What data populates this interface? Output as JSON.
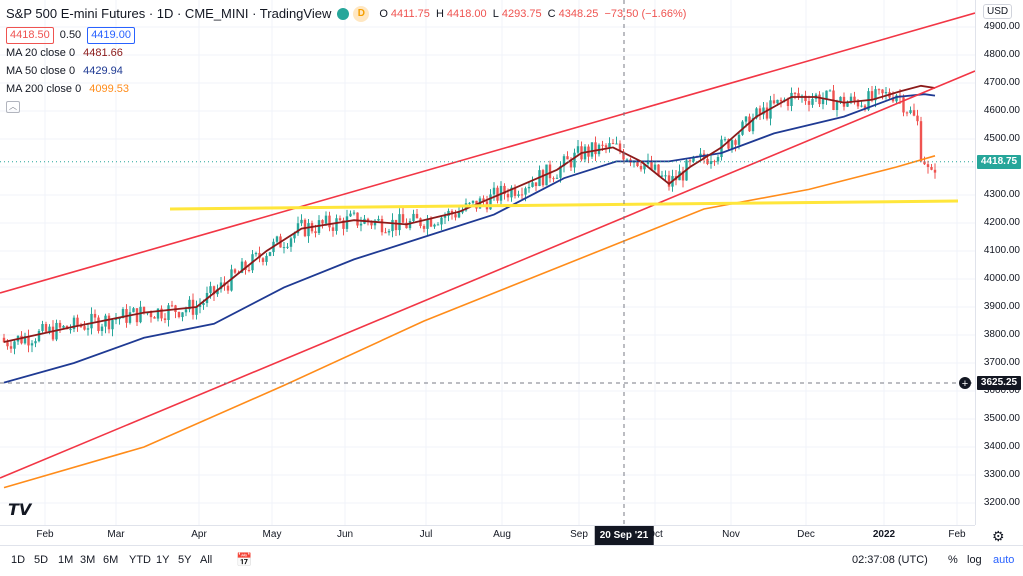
{
  "header": {
    "title": "S&P 500 E-mini Futures · 1D · CME_MINI · TradingView",
    "interval_badge": "D",
    "ohlc": {
      "o_label": "O",
      "o": "4411.75",
      "h_label": "H",
      "h": "4418.00",
      "l_label": "L",
      "l": "4293.75",
      "c_label": "C",
      "c": "4348.25",
      "change": "−73.50 (−1.66%)"
    },
    "bid": "4418.50",
    "spread": "0.50",
    "ask": "4419.00"
  },
  "indicators": [
    {
      "label": "MA 20 close 0",
      "value": "4481.66",
      "color": "#8b1a1a"
    },
    {
      "label": "MA 50 close 0",
      "value": "4429.94",
      "color": "#1f3a93"
    },
    {
      "label": "MA 200 close 0",
      "value": "4099.53",
      "color": "#ff8c1a"
    }
  ],
  "price_axis": {
    "currency": "USD",
    "ticks": [
      "4900.00",
      "4800.00",
      "4700.00",
      "4600.00",
      "4500.00",
      "4400.00",
      "4300.00",
      "4200.00",
      "4100.00",
      "4000.00",
      "3900.00",
      "3800.00",
      "3700.00",
      "3600.00",
      "3500.00",
      "3400.00",
      "3300.00",
      "3200.00"
    ],
    "last_price": "4418.75",
    "crosshair_price": "3625.25"
  },
  "time_axis": {
    "labels": [
      "Feb",
      "Mar",
      "Apr",
      "May",
      "Jun",
      "Jul",
      "Aug",
      "Sep",
      "Oct",
      "Nov",
      "Dec",
      "2022",
      "Feb"
    ],
    "crosshair_date": "20 Sep '21"
  },
  "toolbar": {
    "ranges": [
      "1D",
      "5D",
      "1M",
      "3M",
      "6M",
      "YTD",
      "1Y",
      "5Y",
      "All"
    ],
    "clock": "02:37:08 (UTC)",
    "percent": "%",
    "log": "log",
    "auto": "auto"
  },
  "colors": {
    "up": "#26a69a",
    "down": "#ef5350",
    "channel": "#f23645",
    "horizontal": "#ffe63b",
    "ma20": "#8b1a1a",
    "ma50": "#1f3a93",
    "ma200": "#ff8c1a"
  },
  "chart_data": {
    "type": "candlestick",
    "ylim": [
      3150,
      4950
    ],
    "ma20_approx": [
      [
        0,
        3775
      ],
      [
        20,
        3830
      ],
      [
        40,
        3880
      ],
      [
        55,
        3900
      ],
      [
        75,
        4100
      ],
      [
        85,
        4180
      ],
      [
        100,
        4210
      ],
      [
        115,
        4195
      ],
      [
        130,
        4240
      ],
      [
        145,
        4320
      ],
      [
        158,
        4390
      ],
      [
        165,
        4450
      ],
      [
        174,
        4470
      ],
      [
        182,
        4420
      ],
      [
        190,
        4340
      ],
      [
        196,
        4400
      ],
      [
        205,
        4470
      ],
      [
        215,
        4580
      ],
      [
        225,
        4650
      ],
      [
        232,
        4650
      ],
      [
        240,
        4630
      ],
      [
        248,
        4640
      ],
      [
        256,
        4670
      ],
      [
        262,
        4690
      ],
      [
        266,
        4682
      ]
    ],
    "ma50_approx": [
      [
        0,
        3630
      ],
      [
        20,
        3700
      ],
      [
        40,
        3790
      ],
      [
        60,
        3840
      ],
      [
        80,
        3970
      ],
      [
        100,
        4070
      ],
      [
        120,
        4150
      ],
      [
        140,
        4230
      ],
      [
        160,
        4360
      ],
      [
        175,
        4420
      ],
      [
        190,
        4420
      ],
      [
        205,
        4450
      ],
      [
        220,
        4520
      ],
      [
        240,
        4580
      ],
      [
        255,
        4650
      ],
      [
        263,
        4660
      ],
      [
        266,
        4655
      ]
    ],
    "ma200_approx": [
      [
        0,
        3255
      ],
      [
        40,
        3400
      ],
      [
        80,
        3620
      ],
      [
        120,
        3850
      ],
      [
        160,
        4050
      ],
      [
        180,
        4150
      ],
      [
        200,
        4250
      ],
      [
        230,
        4320
      ],
      [
        255,
        4400
      ],
      [
        266,
        4440
      ]
    ],
    "channel_upper": [
      [
        0,
        3940
      ],
      [
        266,
        4930
      ]
    ],
    "channel_lower": [
      [
        0,
        3290
      ],
      [
        266,
        4750
      ]
    ],
    "horizontal_line": [
      [
        47,
        4250
      ],
      [
        264,
        4275
      ]
    ],
    "last_close": 4418.75
  }
}
